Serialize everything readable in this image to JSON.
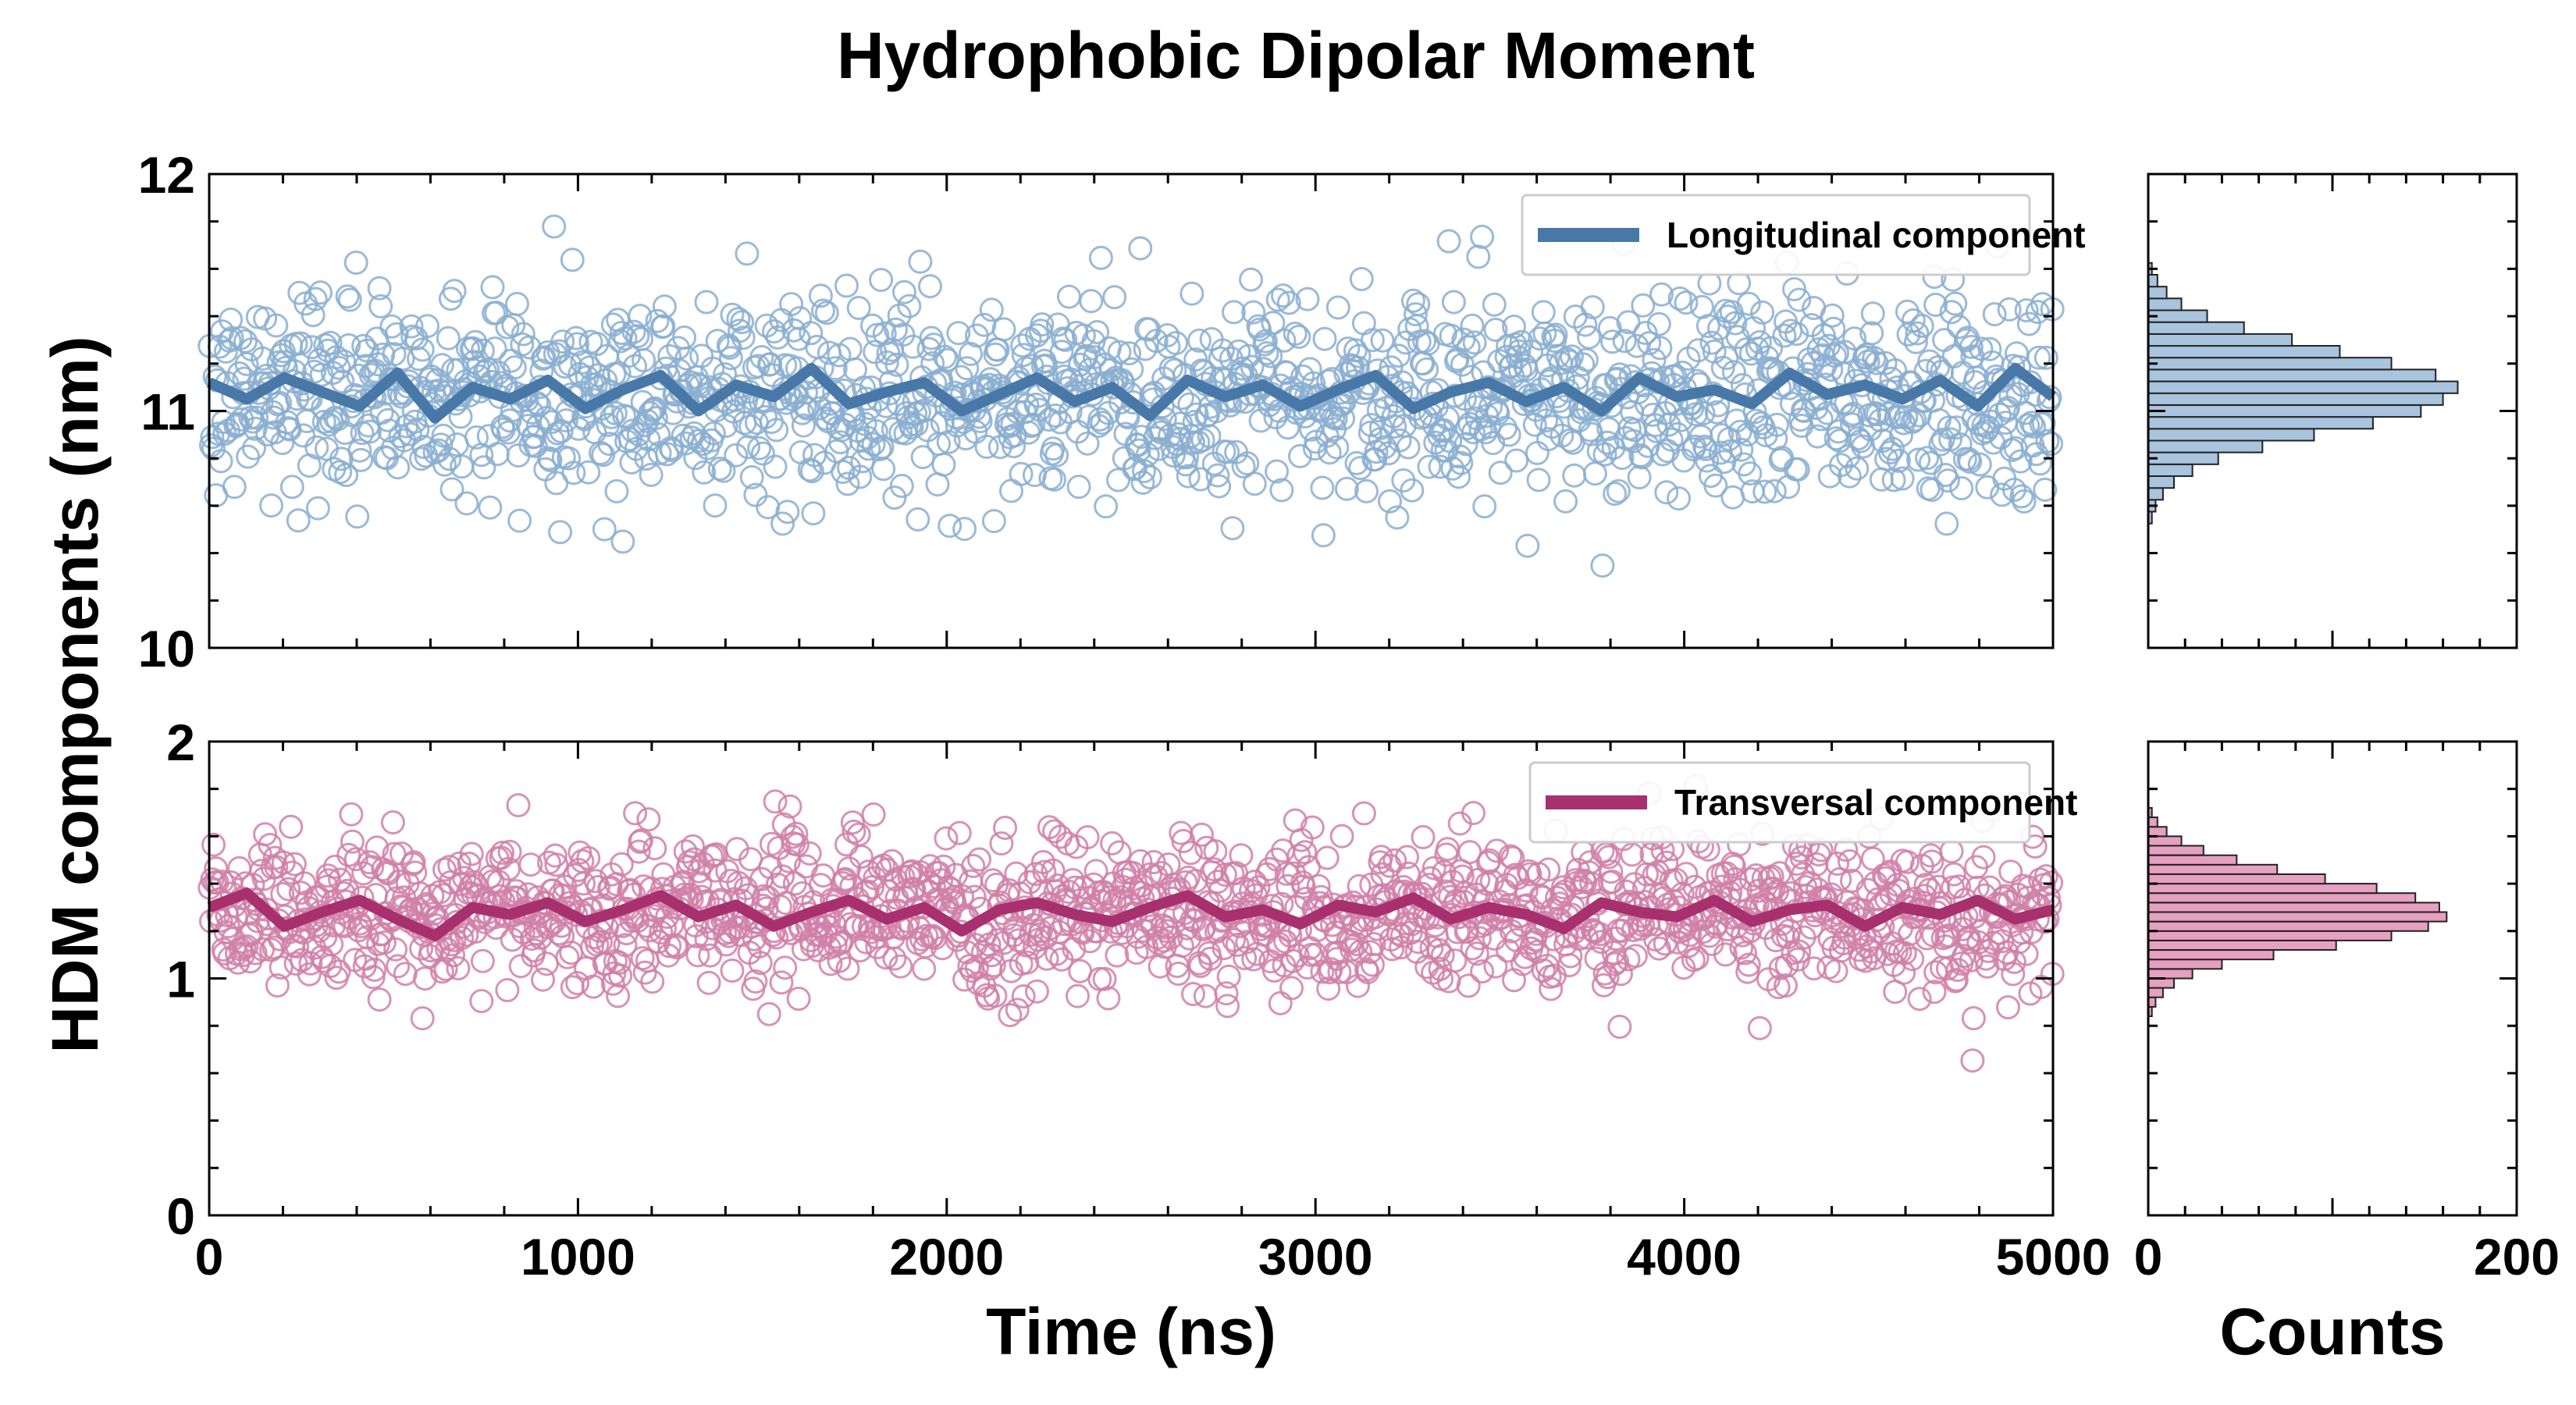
{
  "chart_data": {
    "type": "scatter",
    "title": "Hydrophobic Dipolar Moment",
    "xlabel": "Time (ns)",
    "ylabel": "HDM components (nm)",
    "xlim": [
      0,
      5000
    ],
    "xticks": [
      0,
      1000,
      2000,
      3000,
      4000,
      5000
    ],
    "hist_xlabel": "Counts",
    "hist_xlim": [
      0,
      200
    ],
    "hist_xticks": [
      0,
      200
    ],
    "grid": false,
    "panels": [
      {
        "name": "longitudinal",
        "series_name": "Longitudinal component",
        "color": "#4878a8",
        "marker_color": "#8aaed0",
        "hist_fill": "#a9c4de",
        "ylim": [
          10,
          12
        ],
        "yticks": [
          10,
          11,
          12
        ],
        "legend_position": "top-right",
        "mean": 11.07,
        "std": 0.22,
        "running_mean": [
          11.12,
          11.05,
          11.14,
          11.08,
          11.02,
          11.16,
          10.97,
          11.1,
          11.05,
          11.13,
          11.01,
          11.09,
          11.15,
          11.0,
          11.11,
          11.06,
          11.18,
          11.03,
          11.08,
          11.12,
          11.0,
          11.07,
          11.14,
          11.04,
          11.1,
          10.98,
          11.13,
          11.06,
          11.11,
          11.02,
          11.09,
          11.15,
          11.01,
          11.08,
          11.12,
          11.04,
          11.1,
          11.0,
          11.14,
          11.06,
          11.09,
          11.03,
          11.16,
          11.07,
          11.11,
          11.05,
          11.13,
          11.02,
          11.18,
          11.06
        ],
        "hist_bins": [
          10.55,
          10.6,
          10.65,
          10.7,
          10.75,
          10.8,
          10.85,
          10.9,
          10.95,
          11.0,
          11.05,
          11.1,
          11.15,
          11.2,
          11.25,
          11.3,
          11.35,
          11.4,
          11.45,
          11.5,
          11.55,
          11.6
        ],
        "hist_counts": [
          2,
          4,
          8,
          14,
          24,
          38,
          62,
          90,
          122,
          148,
          160,
          168,
          156,
          132,
          104,
          78,
          52,
          32,
          18,
          10,
          5,
          2
        ]
      },
      {
        "name": "transversal",
        "series_name": "Transversal component",
        "color": "#a8306e",
        "marker_color": "#d080a8",
        "hist_fill": "#e6a0c0",
        "ylim": [
          0,
          2
        ],
        "yticks": [
          0,
          1,
          2
        ],
        "legend_position": "top-right",
        "mean": 1.28,
        "std": 0.16,
        "running_mean": [
          1.3,
          1.36,
          1.22,
          1.28,
          1.33,
          1.25,
          1.18,
          1.3,
          1.27,
          1.32,
          1.24,
          1.29,
          1.35,
          1.26,
          1.31,
          1.22,
          1.28,
          1.33,
          1.25,
          1.3,
          1.2,
          1.29,
          1.32,
          1.27,
          1.24,
          1.3,
          1.35,
          1.26,
          1.29,
          1.23,
          1.31,
          1.28,
          1.34,
          1.25,
          1.3,
          1.27,
          1.21,
          1.32,
          1.28,
          1.26,
          1.33,
          1.24,
          1.29,
          1.31,
          1.22,
          1.3,
          1.27,
          1.33,
          1.25,
          1.29
        ],
        "hist_bins": [
          0.86,
          0.9,
          0.94,
          0.98,
          1.02,
          1.06,
          1.1,
          1.14,
          1.18,
          1.22,
          1.26,
          1.3,
          1.34,
          1.38,
          1.42,
          1.46,
          1.5,
          1.54,
          1.58,
          1.62,
          1.66,
          1.7
        ],
        "hist_counts": [
          2,
          4,
          8,
          14,
          24,
          40,
          68,
          102,
          132,
          152,
          162,
          158,
          145,
          124,
          96,
          70,
          48,
          30,
          18,
          10,
          5,
          2
        ]
      }
    ]
  }
}
